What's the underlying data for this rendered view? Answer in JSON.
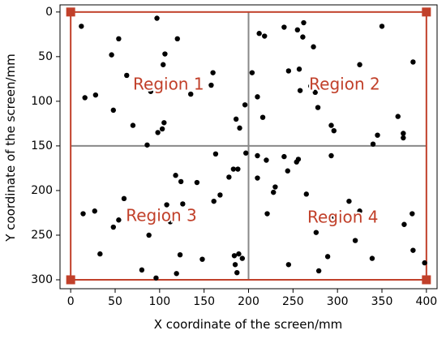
{
  "chart_data": {
    "type": "scatter",
    "title": "",
    "xlabel": "X coordinate of the screen/mm",
    "ylabel": "Y coordinate of the screen/mm",
    "xlim": [
      -12,
      412
    ],
    "ylim": [
      310,
      -8
    ],
    "y_axis_inverted": true,
    "xticks": [
      0,
      50,
      100,
      150,
      200,
      250,
      300,
      350,
      400
    ],
    "yticks": [
      0,
      50,
      100,
      150,
      200,
      250,
      300
    ],
    "grid": false,
    "legend": "none",
    "boundary": {
      "x": [
        0,
        400
      ],
      "y": [
        0,
        300
      ],
      "color": "#c1402a"
    },
    "corner_markers": [
      {
        "x": 0,
        "y": 0
      },
      {
        "x": 400,
        "y": 0
      },
      {
        "x": 0,
        "y": 300
      },
      {
        "x": 400,
        "y": 300
      }
    ],
    "dividers": {
      "x": 200,
      "y": 150,
      "color": "#888888"
    },
    "regions": [
      {
        "label": "Region 1",
        "x": 110,
        "y": 82
      },
      {
        "label": "Region 2",
        "x": 308,
        "y": 82
      },
      {
        "label": "Region 3",
        "x": 102,
        "y": 229
      },
      {
        "label": "Region 4",
        "x": 306,
        "y": 231
      }
    ],
    "point_color": "#000000",
    "points": [
      {
        "x": 12,
        "y": 16
      },
      {
        "x": 97,
        "y": 7
      },
      {
        "x": 54,
        "y": 30
      },
      {
        "x": 120,
        "y": 30
      },
      {
        "x": 106,
        "y": 47
      },
      {
        "x": 46,
        "y": 48
      },
      {
        "x": 104,
        "y": 59
      },
      {
        "x": 63,
        "y": 71
      },
      {
        "x": 160,
        "y": 68
      },
      {
        "x": 158,
        "y": 82
      },
      {
        "x": 135,
        "y": 92
      },
      {
        "x": 90,
        "y": 89
      },
      {
        "x": 16,
        "y": 96
      },
      {
        "x": 28,
        "y": 93
      },
      {
        "x": 48,
        "y": 110
      },
      {
        "x": 70,
        "y": 127
      },
      {
        "x": 105,
        "y": 124
      },
      {
        "x": 103,
        "y": 131
      },
      {
        "x": 98,
        "y": 135
      },
      {
        "x": 190,
        "y": 130
      },
      {
        "x": 186,
        "y": 120
      },
      {
        "x": 196,
        "y": 104
      },
      {
        "x": 86,
        "y": 149
      },
      {
        "x": 163,
        "y": 159
      },
      {
        "x": 212,
        "y": 24
      },
      {
        "x": 218,
        "y": 27
      },
      {
        "x": 240,
        "y": 17
      },
      {
        "x": 255,
        "y": 20
      },
      {
        "x": 262,
        "y": 12
      },
      {
        "x": 261,
        "y": 28
      },
      {
        "x": 273,
        "y": 39
      },
      {
        "x": 350,
        "y": 16
      },
      {
        "x": 385,
        "y": 56
      },
      {
        "x": 325,
        "y": 59
      },
      {
        "x": 245,
        "y": 66
      },
      {
        "x": 257,
        "y": 64
      },
      {
        "x": 204,
        "y": 68
      },
      {
        "x": 270,
        "y": 83
      },
      {
        "x": 275,
        "y": 90
      },
      {
        "x": 258,
        "y": 88
      },
      {
        "x": 210,
        "y": 95
      },
      {
        "x": 278,
        "y": 107
      },
      {
        "x": 216,
        "y": 118
      },
      {
        "x": 293,
        "y": 127
      },
      {
        "x": 296,
        "y": 133
      },
      {
        "x": 368,
        "y": 117
      },
      {
        "x": 374,
        "y": 136
      },
      {
        "x": 374,
        "y": 141
      },
      {
        "x": 345,
        "y": 138
      },
      {
        "x": 340,
        "y": 148
      },
      {
        "x": 60,
        "y": 209
      },
      {
        "x": 14,
        "y": 226
      },
      {
        "x": 27,
        "y": 223
      },
      {
        "x": 48,
        "y": 241
      },
      {
        "x": 54,
        "y": 233
      },
      {
        "x": 33,
        "y": 271
      },
      {
        "x": 88,
        "y": 250
      },
      {
        "x": 80,
        "y": 289
      },
      {
        "x": 96,
        "y": 298
      },
      {
        "x": 108,
        "y": 216
      },
      {
        "x": 112,
        "y": 235
      },
      {
        "x": 118,
        "y": 183
      },
      {
        "x": 124,
        "y": 190
      },
      {
        "x": 126,
        "y": 215
      },
      {
        "x": 142,
        "y": 191
      },
      {
        "x": 123,
        "y": 272
      },
      {
        "x": 119,
        "y": 293
      },
      {
        "x": 148,
        "y": 277
      },
      {
        "x": 161,
        "y": 212
      },
      {
        "x": 168,
        "y": 205
      },
      {
        "x": 178,
        "y": 185
      },
      {
        "x": 183,
        "y": 176
      },
      {
        "x": 188,
        "y": 176
      },
      {
        "x": 184,
        "y": 273
      },
      {
        "x": 185,
        "y": 283
      },
      {
        "x": 189,
        "y": 271
      },
      {
        "x": 187,
        "y": 292
      },
      {
        "x": 193,
        "y": 276
      },
      {
        "x": 197,
        "y": 158
      },
      {
        "x": 210,
        "y": 161
      },
      {
        "x": 220,
        "y": 166
      },
      {
        "x": 240,
        "y": 162
      },
      {
        "x": 210,
        "y": 186
      },
      {
        "x": 230,
        "y": 196
      },
      {
        "x": 228,
        "y": 202
      },
      {
        "x": 244,
        "y": 178
      },
      {
        "x": 256,
        "y": 165
      },
      {
        "x": 254,
        "y": 168
      },
      {
        "x": 221,
        "y": 226
      },
      {
        "x": 245,
        "y": 283
      },
      {
        "x": 265,
        "y": 204
      },
      {
        "x": 276,
        "y": 247
      },
      {
        "x": 296,
        "y": 229
      },
      {
        "x": 293,
        "y": 161
      },
      {
        "x": 279,
        "y": 290
      },
      {
        "x": 289,
        "y": 274
      },
      {
        "x": 313,
        "y": 212
      },
      {
        "x": 320,
        "y": 256
      },
      {
        "x": 325,
        "y": 223
      },
      {
        "x": 339,
        "y": 276
      },
      {
        "x": 375,
        "y": 238
      },
      {
        "x": 384,
        "y": 226
      },
      {
        "x": 385,
        "y": 267
      },
      {
        "x": 398,
        "y": 281
      }
    ]
  }
}
